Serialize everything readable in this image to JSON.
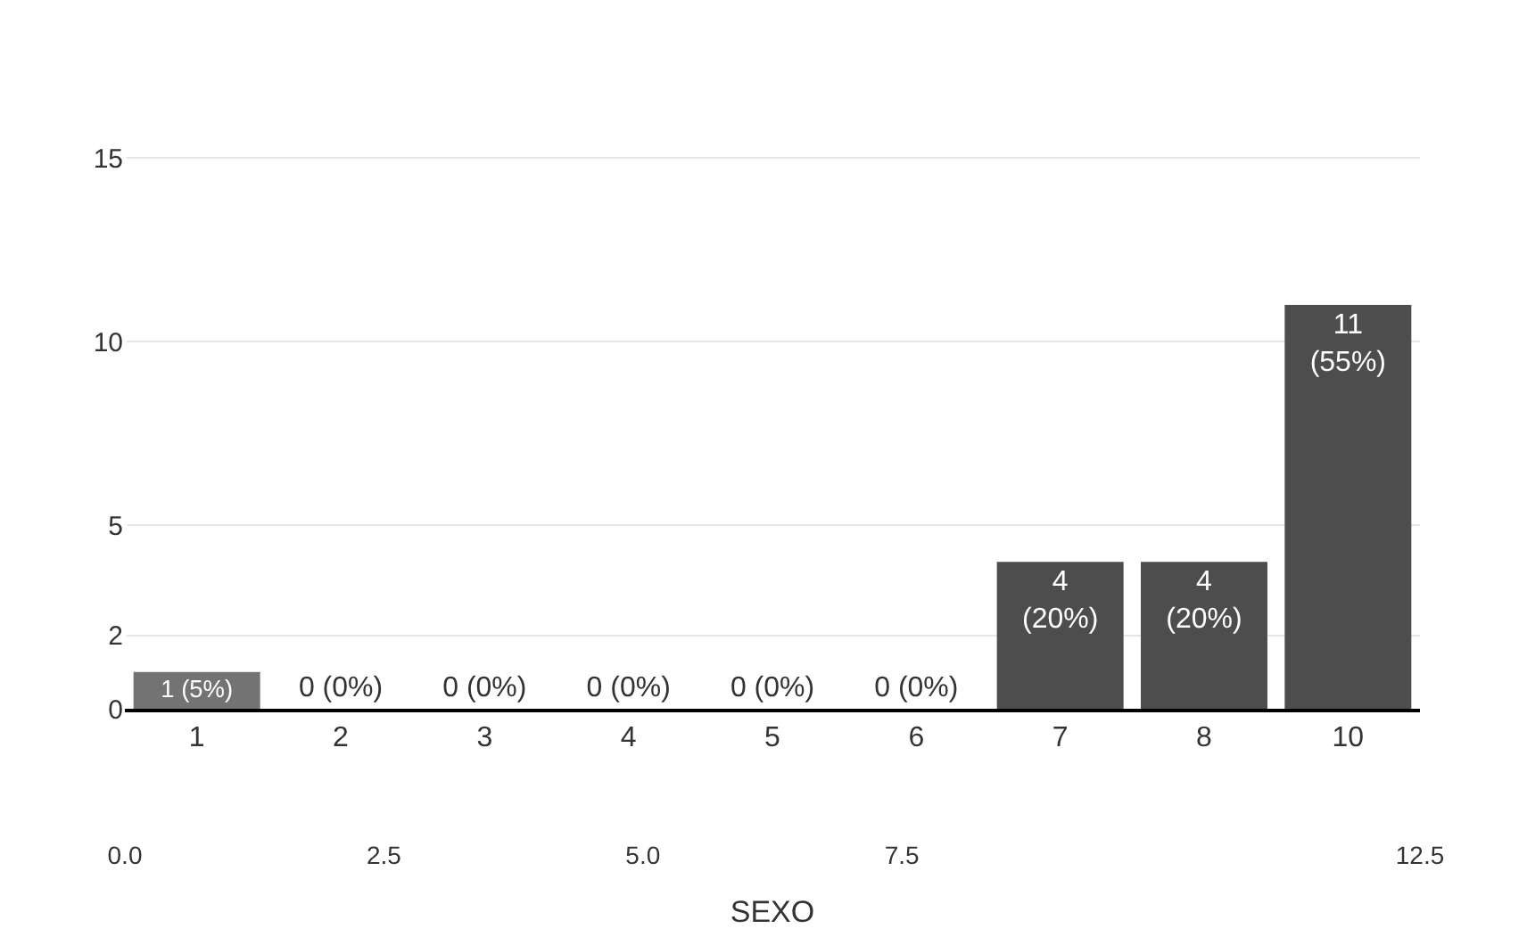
{
  "chart_data": {
    "type": "bar",
    "categories": [
      "1",
      "2",
      "3",
      "4",
      "5",
      "6",
      "7",
      "8",
      "10"
    ],
    "values": [
      1,
      0,
      0,
      0,
      0,
      0,
      4,
      4,
      11
    ],
    "colors": [
      "#737373",
      "#4d4d4d",
      "#4d4d4d",
      "#4d4d4d",
      "#4d4d4d",
      "#4d4d4d",
      "#4d4d4d",
      "#4d4d4d",
      "#4d4d4d"
    ],
    "value_labels": [
      "1 (5%)",
      "0 (0%)",
      "0 (0%)",
      "0 (0%)",
      "0 (0%)",
      "0 (0%)",
      "4 (20%)",
      "4 (20%)",
      "11 (55%)"
    ],
    "ylim": [
      0,
      15.3
    ],
    "yticks": [
      0,
      2,
      5,
      10,
      15
    ],
    "x2lim": [
      0,
      12.5
    ],
    "x2ticks": [
      {
        "value": 0,
        "label": "0.0"
      },
      {
        "value": 2.5,
        "label": "2.5"
      },
      {
        "value": 5,
        "label": "5.0"
      },
      {
        "value": 7.5,
        "label": "7.5"
      },
      {
        "value": 12.5,
        "label": "12.5"
      }
    ],
    "xlabel": "SEXO",
    "grid": "y"
  }
}
